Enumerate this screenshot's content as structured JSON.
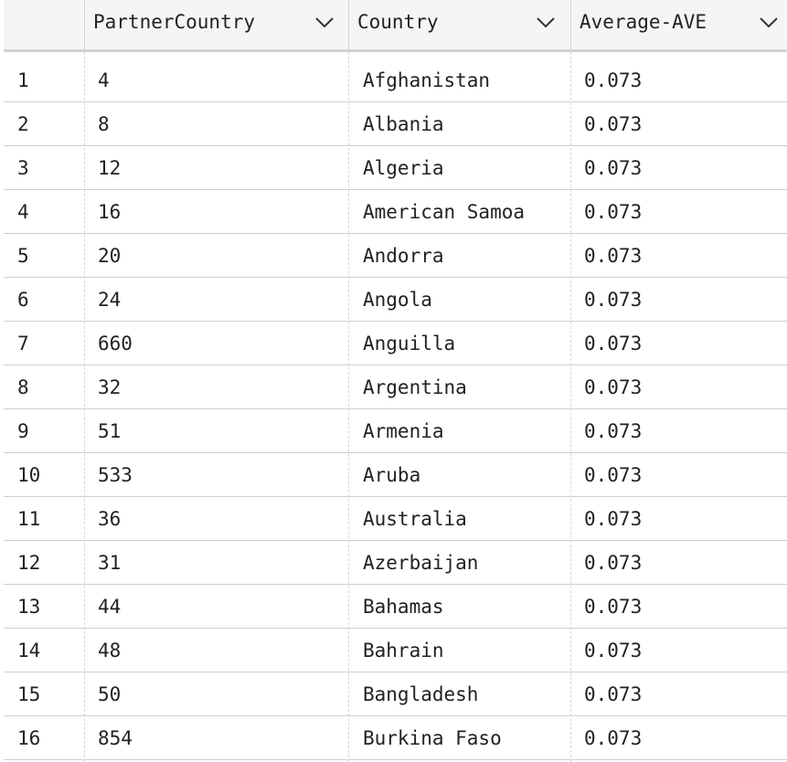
{
  "table": {
    "columns": [
      {
        "label": ""
      },
      {
        "label": "PartnerCountry"
      },
      {
        "label": "Country"
      },
      {
        "label": "Average-AVE"
      }
    ],
    "sort_icon": "chevron-down-icon",
    "rows": [
      {
        "index": "1",
        "partner_country": "4",
        "country": "Afghanistan",
        "average_ave": "0.073"
      },
      {
        "index": "2",
        "partner_country": "8",
        "country": "Albania",
        "average_ave": "0.073"
      },
      {
        "index": "3",
        "partner_country": "12",
        "country": "Algeria",
        "average_ave": "0.073"
      },
      {
        "index": "4",
        "partner_country": "16",
        "country": "American Samoa",
        "average_ave": "0.073"
      },
      {
        "index": "5",
        "partner_country": "20",
        "country": "Andorra",
        "average_ave": "0.073"
      },
      {
        "index": "6",
        "partner_country": "24",
        "country": "Angola",
        "average_ave": "0.073"
      },
      {
        "index": "7",
        "partner_country": "660",
        "country": "Anguilla",
        "average_ave": "0.073"
      },
      {
        "index": "8",
        "partner_country": "32",
        "country": "Argentina",
        "average_ave": "0.073"
      },
      {
        "index": "9",
        "partner_country": "51",
        "country": "Armenia",
        "average_ave": "0.073"
      },
      {
        "index": "10",
        "partner_country": "533",
        "country": "Aruba",
        "average_ave": "0.073"
      },
      {
        "index": "11",
        "partner_country": "36",
        "country": "Australia",
        "average_ave": "0.073"
      },
      {
        "index": "12",
        "partner_country": "31",
        "country": "Azerbaijan",
        "average_ave": "0.073"
      },
      {
        "index": "13",
        "partner_country": "44",
        "country": "Bahamas",
        "average_ave": "0.073"
      },
      {
        "index": "14",
        "partner_country": "48",
        "country": "Bahrain",
        "average_ave": "0.073"
      },
      {
        "index": "15",
        "partner_country": "50",
        "country": "Bangladesh",
        "average_ave": "0.073"
      },
      {
        "index": "16",
        "partner_country": "854",
        "country": "Burkina Faso",
        "average_ave": "0.073"
      }
    ]
  }
}
